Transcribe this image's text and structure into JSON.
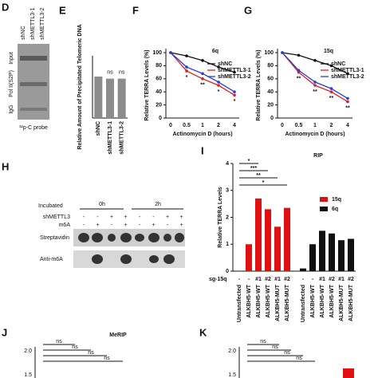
{
  "blot_D": {
    "label": "D",
    "columns": [
      "shNC",
      "shMETTL3-1",
      "shMETTL3-2"
    ],
    "rows": [
      "Input",
      "Pol II(S2P)",
      "IgG"
    ],
    "probe": "³²p-C probe"
  },
  "blot_H": {
    "label": "H",
    "incubated": "Incubated",
    "times": [
      "0h",
      "2h"
    ],
    "rows": [
      {
        "name": "shMETTL3",
        "signs": [
          "-",
          "-",
          "+",
          "+",
          "-",
          "-",
          "+",
          "+"
        ]
      },
      {
        "name": "m6A",
        "signs": [
          "-",
          "+",
          "-",
          "+",
          "-",
          "+",
          "-",
          "+"
        ]
      }
    ],
    "bands": [
      "Streptavidin",
      "Anti-m6A"
    ]
  },
  "panel_J": {
    "label": "J",
    "title": "MeRIP",
    "tick_labels": [
      "2.0",
      "1.5"
    ],
    "annotations": [
      "ns",
      "ns",
      "ns",
      "ns"
    ]
  },
  "panel_K": {
    "label": "K",
    "tick_labels": [
      "2.0",
      "1.5"
    ],
    "annotations": [
      "ns",
      "ns",
      "ns",
      "ns"
    ]
  },
  "chart_data": [
    {
      "type": "bar",
      "panel_label": "E",
      "y_label": "Relative Amount of Precipitated Telomeric DNA",
      "categories": [
        "shNC",
        "shMETTL3-1",
        "shMETTL3-2"
      ],
      "values": [
        1.0,
        0.95,
        0.95
      ],
      "color": "#8c8c8c",
      "ylim": [
        0,
        1.5
      ],
      "annotations": [
        null,
        "ns",
        "ns"
      ]
    },
    {
      "type": "line",
      "panel_label": "F",
      "title": "6q",
      "x_label": "Actinomycin D (hours)",
      "y_label": "Relative TERRA Levels (%)",
      "categories": [
        "0",
        "0.5",
        "1",
        "2",
        "4"
      ],
      "ylim": [
        0,
        100
      ],
      "yticks": [
        0,
        20,
        40,
        60,
        80,
        100
      ],
      "series": [
        {
          "name": "shNC",
          "color": "#111111",
          "values": [
            100,
            95,
            88,
            78,
            70
          ]
        },
        {
          "name": "shMETTL3-1",
          "color": "#e02020",
          "values": [
            100,
            72,
            60,
            50,
            35
          ]
        },
        {
          "name": "shMETTL3-2",
          "color": "#2a3fd6",
          "values": [
            100,
            78,
            68,
            55,
            40
          ]
        }
      ],
      "annotations": [
        null,
        "*",
        "**",
        "*",
        "*"
      ]
    },
    {
      "type": "line",
      "panel_label": "G",
      "title": "15q",
      "x_label": "Actinomycin D (hours)",
      "y_label": "Relative TERRA Levels (%)",
      "categories": [
        "0",
        "0.5",
        "1",
        "2",
        "4"
      ],
      "ylim": [
        0,
        100
      ],
      "yticks": [
        0,
        20,
        40,
        60,
        80,
        100
      ],
      "series": [
        {
          "name": "shNC",
          "color": "#111111",
          "values": [
            100,
            96,
            88,
            80,
            68
          ]
        },
        {
          "name": "shMETTL3-1",
          "color": "#e02020",
          "values": [
            100,
            70,
            50,
            40,
            25
          ]
        },
        {
          "name": "shMETTL3-2",
          "color": "#2a3fd6",
          "values": [
            100,
            73,
            55,
            45,
            30
          ]
        }
      ],
      "annotations": [
        null,
        "**",
        "**",
        "**",
        "**"
      ]
    },
    {
      "type": "groupbar",
      "panel_label": "I",
      "title": "RIP",
      "y_label": "Relative TERRA Levels",
      "categories": [
        "Untransfected",
        "ALKBH5-WT",
        "ALKBH5-WT",
        "ALKBH5-WT",
        "ALKBH5-MUT",
        "ALKBH5-MUT"
      ],
      "row_label": "sg-15q",
      "row_values": [
        "-",
        "-",
        "#1",
        "#2",
        "#1",
        "#2"
      ],
      "ylim": [
        0,
        4
      ],
      "yticks": [
        0,
        1,
        2,
        3,
        4
      ],
      "series": [
        {
          "name": "15q",
          "color": "#e01010",
          "values": [
            0,
            1.0,
            2.7,
            2.3,
            1.65,
            2.35
          ]
        },
        {
          "name": "6q",
          "color": "#111111",
          "values": [
            0.1,
            1.0,
            1.5,
            1.4,
            1.15,
            1.2
          ]
        }
      ],
      "annotations": [
        "*",
        "***",
        "**",
        "*"
      ]
    }
  ]
}
